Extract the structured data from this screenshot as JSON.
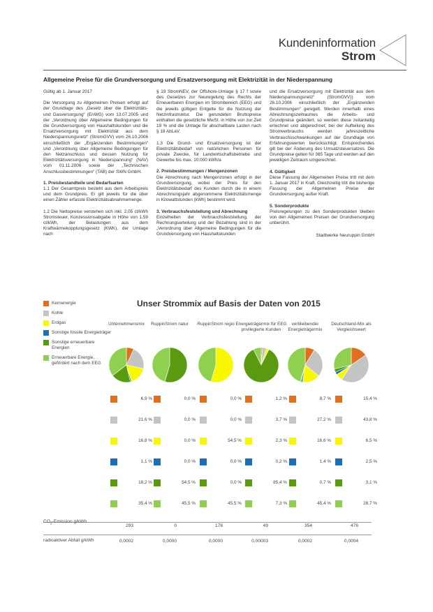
{
  "header": {
    "title": "Kundeninformation",
    "subtitle": "Strom"
  },
  "headline": "Allgemeine Preise für die Grundversorgung und Ersatzversorgung mit Elektrizität in der Niederspannung",
  "text": {
    "col1": {
      "p1": "Gültig ab 1. Januar 2017",
      "p2": "Die Versorgung zu Allgemeinen Preisen erfolgt auf der Grundlage des „Gesetz über die Elektrizitäts- und Gasversorgung“ (EnWG) vom 13.07.2005 und der „Verordnung über Allgemeine Bedingungen für die Grundversorgung von Haushaltskunden und die Ersatzversorgung mit Elektrizität aus dem Niederspannungsnetz“ (StromGVV) vom 26.10.2006 einschließlich der „Ergänzenden Bestimmungen“ und „Verordnung über Allgemeine Bedingungen für den Netzanschluss und dessen Nutzung für Elektrizitätsversorgung in Niederspannung“ (NAV) vom 01.11.2006 sowie der „Technischen Anschlussbestimmungen“ (TAB) der SWN GmbH.",
      "h1": "1. Preisbestandteile und Bedarfsarten",
      "p3": "1.1 Der Gesamtpreis besteht aus dem Arbeitspreis und dem Grundpreis. Er gilt jeweils für die über einen Zähler erfasste Elektrizitätsabnahmemenge.",
      "p4": "1.2 Die Nettopreise verstehen sich inkl. 2,05 ct/kWh Stromsteuer, Konzessionsabgabe in Höhe von 1,59 ct/kWh, der Belastungen aus dem Kraftwärmekopplungsgesetz (KWK), der Umlage nach"
    },
    "col2": {
      "p1": "§ 19 StromNEV, der Offshore-Umlage § 17 f sowie des Gesetzes zur Neuregelung des Rechts der Erneuerbaren Energien im Strombereich (EEG) und die jeweils gültigen Entgelte für die Nutzung der Netzinfrastruktur. Die gerundeten Bruttopreise enthalten die gesetzliche MwSt. in Höhe von zur Zeit 19 % und die Umlage für abschaltbare Lasten nach § 18 AbLaV.",
      "p2": "1.3 Die Grund- und Ersatzversorgung ist der Elektrizitätsbedarf von natürlichen Personen für private Zwecke, für Landwirtschaftsbetriebe und Gewerbe bis max. 10.000 kWh/a",
      "h2": "2. Preisbestimmungen / Mengenzonen",
      "p3": "Die Abrechnung nach Mengenzonen erfolgt in der Grundversorgung, wobei der Preis für den Elektrizitätsbedarf des Kunden durch die in einem Abrechnungsjahr abgenommene Elektrizitätsmenge in Kilowattstunden (kWh) bestimmt wird.",
      "h3": "3. Verbrauchsfeststellung und Abrechnung",
      "p4": "Einzelheiten der Verbrauchsfeststellung, der Rechnungserteilung und der Bezahlung sind in der „Verordnung über Allgemeine Bedingungen für die Grundversorgung von Haushaltskunden"
    },
    "col3": {
      "p1": "und die Ersatzversorgung mit Elektrizität aus dem Niederspannungsnetz“ (StromGVV)) vom 26.10.2006 einschließlich der „Ergänzenden Bestimmungen“ geregelt. Werden innerhalb eines Abrechnungszeitraumes die Arbeits- und Grundpreise geändert, so werden diese zeitanteilig errechnet und abgerechnet; bei der Aufteilung des Stromverbrauchs werden jahreszeitliche Verbrauchsschwankungen auf der Grundlage von Erfahrungswerten berücksichtigt. Entsprechendes gilt bei der Änderung des Umsatzsteuersatzes. Die Grundpreise gelten für 365 Tage und werden auf den jeweiligen Zeitraum umgerechnet.",
      "h4": "4. Gültigkeit",
      "p2": "Diese Fassung der Allgemeinen Preise tritt mit dem 1. Januar 2017 in Kraft. Gleichzeitig tritt die bisherige Fassung der Allgemeinen Preise der Grundversorgung außer Kraft.",
      "h5": "5. Sonderprodukte",
      "p3": "Preisregelungen zu den Sonderprodukten bleiben von den Allgemeinen Preisen der Grundversorgung unberührt.",
      "sign": "Stadtwerke Neuruppin GmbH"
    }
  },
  "strommix": {
    "title": "Unser Strommix auf Basis der Daten von 2015",
    "legend": [
      {
        "label": "Kernenergie",
        "color": "#e07020"
      },
      {
        "label": "Kohle",
        "color": "#c4c4c4"
      },
      {
        "label": "Erdgas",
        "color": "#f8f800"
      },
      {
        "label": "Sonstige fossile Energieträger",
        "color": "#1a6fb5"
      },
      {
        "label": "Sonstige erneuerbare Energien",
        "color": "#5a9a10"
      },
      {
        "label": "Erneuerbare Energie, gefördert nach dem EEG",
        "color": "#90d050"
      }
    ],
    "columns": [
      {
        "head": "Unternehmensmix",
        "values": [
          6.9,
          21.6,
          16.8,
          1.1,
          18.2,
          35.4
        ],
        "labels": [
          "6,9 %",
          "21,6 %",
          "16,8 %",
          "1,1 %",
          "18,2 %",
          "35,4 %"
        ]
      },
      {
        "head": "RuppinStrom natur",
        "values": [
          0,
          0,
          0,
          0,
          54.5,
          45.5
        ],
        "labels": [
          "0,0 %",
          "0,0 %",
          "0,0 %",
          "0,0 %",
          "54,5 %",
          "45,5 %"
        ]
      },
      {
        "head": "RuppinStrom regio",
        "values": [
          0,
          0,
          54.5,
          0,
          0,
          45.5
        ],
        "labels": [
          "0,0 %",
          "0,0 %",
          "54,5 %",
          "0,0 %",
          "0,0 %",
          "45,5 %"
        ]
      },
      {
        "head": "Energieträgermix für EEG privilegierte Kunden",
        "values": [
          1.2,
          3.7,
          2.3,
          0.2,
          85.4,
          7.3
        ],
        "labels": [
          "1,2 %",
          "3,7 %",
          "2,3 %",
          "0,2 %",
          "85,4 %",
          "7,3 %"
        ]
      },
      {
        "head": "verbleibender Energieträgermix",
        "values": [
          8.7,
          27.2,
          16.6,
          1.4,
          0.7,
          45.4
        ],
        "labels": [
          "8,7 %",
          "27,2 %",
          "16,6 %",
          "1,4 %",
          "0,7 %",
          "45,4 %"
        ]
      },
      {
        "head": "Deutschland-Mix als Vergleichswert",
        "values": [
          15.4,
          43.8,
          6.5,
          2.5,
          3.1,
          28.7
        ],
        "labels": [
          "15,4 %",
          "43,8 %",
          "6,5 %",
          "2,5 %",
          "3,1 %",
          "28,7 %"
        ]
      }
    ],
    "co2_label_pre": "CO",
    "co2_label_sub": "2",
    "co2_label_post": "-Emission g/kWh",
    "co2_values": [
      "293",
      "0",
      "176",
      "49",
      "354",
      "476"
    ],
    "waste_label": "radioaktiver Abfall g/kWh",
    "waste_values": [
      "0,0002",
      "0,0000",
      "0,0000",
      "0,00003",
      "0,0002",
      "0,0004"
    ]
  },
  "chart_data": [
    {
      "type": "pie",
      "title": "Unternehmensmix",
      "categories": [
        "Kernenergie",
        "Kohle",
        "Erdgas",
        "Sonstige fossile Energieträger",
        "Sonstige erneuerbare Energien",
        "Erneuerbare Energie, gefördert nach dem EEG"
      ],
      "values": [
        6.9,
        21.6,
        16.8,
        1.1,
        18.2,
        35.4
      ]
    },
    {
      "type": "pie",
      "title": "RuppinStrom natur",
      "categories": [
        "Kernenergie",
        "Kohle",
        "Erdgas",
        "Sonstige fossile Energieträger",
        "Sonstige erneuerbare Energien",
        "Erneuerbare Energie, gefördert nach dem EEG"
      ],
      "values": [
        0,
        0,
        0,
        0,
        54.5,
        45.5
      ]
    },
    {
      "type": "pie",
      "title": "RuppinStrom regio",
      "categories": [
        "Kernenergie",
        "Kohle",
        "Erdgas",
        "Sonstige fossile Energieträger",
        "Sonstige erneuerbare Energien",
        "Erneuerbare Energie, gefördert nach dem EEG"
      ],
      "values": [
        0,
        0,
        54.5,
        0,
        0,
        45.5
      ]
    },
    {
      "type": "pie",
      "title": "Energieträgermix für EEG privilegierte Kunden",
      "categories": [
        "Kernenergie",
        "Kohle",
        "Erdgas",
        "Sonstige fossile Energieträger",
        "Sonstige erneuerbare Energien",
        "Erneuerbare Energie, gefördert nach dem EEG"
      ],
      "values": [
        1.2,
        3.7,
        2.3,
        0.2,
        85.4,
        7.3
      ]
    },
    {
      "type": "pie",
      "title": "verbleibender Energieträgermix",
      "categories": [
        "Kernenergie",
        "Kohle",
        "Erdgas",
        "Sonstige fossile Energieträger",
        "Sonstige erneuerbare Energien",
        "Erneuerbare Energie, gefördert nach dem EEG"
      ],
      "values": [
        8.7,
        27.2,
        16.6,
        1.4,
        0.7,
        45.4
      ]
    },
    {
      "type": "pie",
      "title": "Deutschland-Mix als Vergleichswert",
      "categories": [
        "Kernenergie",
        "Kohle",
        "Erdgas",
        "Sonstige fossile Energieträger",
        "Sonstige erneuerbare Energien",
        "Erneuerbare Energie, gefördert nach dem EEG"
      ],
      "values": [
        15.4,
        43.8,
        6.5,
        2.5,
        3.1,
        28.7
      ]
    }
  ]
}
